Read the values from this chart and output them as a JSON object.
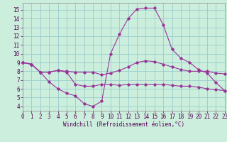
{
  "bg_color": "#cceedd",
  "grid_color": "#99cccc",
  "line_color": "#993399",
  "xlim": [
    0,
    23
  ],
  "ylim": [
    3.5,
    15.8
  ],
  "yticks": [
    4,
    5,
    6,
    7,
    8,
    9,
    10,
    11,
    12,
    13,
    14,
    15
  ],
  "xticks": [
    0,
    1,
    2,
    3,
    4,
    5,
    6,
    7,
    8,
    9,
    10,
    11,
    12,
    13,
    14,
    15,
    16,
    17,
    18,
    19,
    20,
    21,
    22,
    23
  ],
  "xlabel": "Windchill (Refroidissement éolien,°C)",
  "series1_x": [
    0,
    1,
    2,
    3,
    4,
    5,
    6,
    7,
    8,
    9,
    10,
    11,
    12,
    13,
    14,
    15,
    16,
    17,
    18,
    19,
    20,
    21,
    22,
    23
  ],
  "series1_y": [
    9.0,
    8.8,
    7.9,
    7.9,
    8.1,
    8.0,
    7.9,
    7.9,
    7.9,
    7.6,
    7.8,
    8.1,
    8.5,
    9.0,
    9.2,
    9.1,
    8.8,
    8.5,
    8.2,
    8.0,
    8.0,
    8.0,
    7.8,
    7.7
  ],
  "series2_x": [
    0,
    1,
    2,
    3,
    4,
    5,
    6,
    7,
    8,
    9,
    10,
    11,
    12,
    13,
    14,
    15,
    16,
    17,
    18,
    19,
    20,
    21,
    22,
    23
  ],
  "series2_y": [
    9.0,
    8.8,
    7.9,
    6.8,
    6.0,
    5.5,
    5.2,
    4.3,
    4.0,
    4.6,
    10.0,
    12.2,
    14.0,
    15.1,
    15.2,
    15.2,
    13.3,
    10.5,
    9.5,
    9.0,
    8.2,
    7.8,
    6.7,
    5.8
  ],
  "series3_x": [
    0,
    1,
    2,
    3,
    4,
    5,
    6,
    7,
    8,
    9,
    10,
    11,
    12,
    13,
    14,
    15,
    16,
    17,
    18,
    19,
    20,
    21,
    22,
    23
  ],
  "series3_y": [
    9.0,
    8.8,
    7.9,
    7.9,
    8.1,
    7.9,
    6.5,
    6.3,
    6.3,
    6.5,
    6.5,
    6.4,
    6.5,
    6.5,
    6.5,
    6.5,
    6.5,
    6.4,
    6.3,
    6.3,
    6.2,
    6.0,
    5.9,
    5.8
  ],
  "tick_fontsize": 5.5,
  "xlabel_fontsize": 5.5
}
